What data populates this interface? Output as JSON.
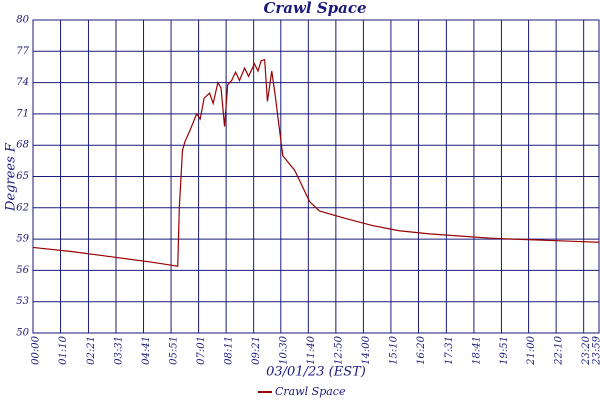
{
  "chart_data": {
    "type": "line",
    "title": "Crawl Space",
    "xlabel": "03/01/23 (EST)",
    "ylabel": "Degrees F",
    "x": [
      0,
      100,
      200,
      300,
      368,
      372,
      380,
      386,
      400,
      416,
      425,
      435,
      449,
      458,
      470,
      478,
      487,
      495,
      505,
      515,
      525,
      538,
      548,
      563,
      572,
      580,
      589,
      596,
      607,
      615,
      635,
      665,
      678,
      703,
      728,
      792,
      863,
      931,
      1008,
      1084,
      1160,
      1221,
      1294,
      1365,
      1439
    ],
    "series": [
      {
        "name": "Crawl Space",
        "color": "#990000",
        "values": [
          58.2,
          57.8,
          57.3,
          56.8,
          56.4,
          62,
          67.5,
          68.3,
          69.5,
          71,
          70.5,
          72.5,
          73,
          72,
          74,
          73.5,
          69.8,
          73.8,
          74.2,
          75,
          74.2,
          75.4,
          74.6,
          75.8,
          75.1,
          76.1,
          76.2,
          72.2,
          75.1,
          73,
          67,
          65.6,
          64.6,
          62.6,
          61.7,
          61,
          60.3,
          59.8,
          59.5,
          59.3,
          59.1,
          59,
          58.9,
          58.8,
          58.7
        ]
      }
    ],
    "xlim": [
      0,
      1439
    ],
    "xticks": [
      {
        "value": 0,
        "label": "00:00"
      },
      {
        "value": 70,
        "label": "01:10"
      },
      {
        "value": 141,
        "label": "02:21"
      },
      {
        "value": 211,
        "label": "03:31"
      },
      {
        "value": 281,
        "label": "04:41"
      },
      {
        "value": 351,
        "label": "05:51"
      },
      {
        "value": 421,
        "label": "07:01"
      },
      {
        "value": 491,
        "label": "08:11"
      },
      {
        "value": 561,
        "label": "09:21"
      },
      {
        "value": 630,
        "label": "10:30"
      },
      {
        "value": 700,
        "label": "11:40"
      },
      {
        "value": 770,
        "label": "12:50"
      },
      {
        "value": 840,
        "label": "14:00"
      },
      {
        "value": 910,
        "label": "15:10"
      },
      {
        "value": 980,
        "label": "16:20"
      },
      {
        "value": 1051,
        "label": "17:31"
      },
      {
        "value": 1121,
        "label": "18:41"
      },
      {
        "value": 1191,
        "label": "19:51"
      },
      {
        "value": 1260,
        "label": "21:00"
      },
      {
        "value": 1330,
        "label": "22:10"
      },
      {
        "value": 1400,
        "label": "23:20"
      },
      {
        "value": 1439,
        "label": "23:59"
      }
    ],
    "ylim": [
      50,
      80
    ],
    "yticks": [
      50,
      53,
      56,
      59,
      62,
      65,
      68,
      71,
      74,
      77,
      80
    ],
    "grid": true
  }
}
